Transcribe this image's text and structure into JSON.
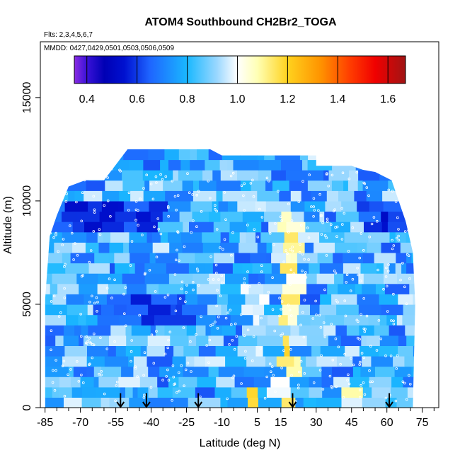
{
  "chart_data": {
    "type": "heatmap",
    "title": "ATOM4 Southbound CH2Br2_TOGA",
    "flights_label": "Flts: 2,3,4,5,6,7",
    "mmdd_label": "MMDD: 0427,0429,0501,0503,0506,0509",
    "xlabel": "Latitude (deg N)",
    "ylabel": "Altitude (m)",
    "xlim": [
      -87,
      82
    ],
    "ylim": [
      0,
      17700
    ],
    "x_tick_labels": [
      "-85",
      "-70",
      "-55",
      "-40",
      "-25",
      "-10",
      "5",
      "15",
      "30",
      "45",
      "60",
      "75"
    ],
    "x_tick_values": [
      -85,
      -70,
      -55,
      -40,
      -25,
      -10,
      5,
      15,
      30,
      45,
      60,
      75
    ],
    "x_minor_ticks": [
      -80,
      -75,
      -65,
      -60,
      -50,
      -45,
      -35,
      -30,
      -20,
      -15,
      -5,
      0,
      10,
      20,
      25,
      35,
      40,
      50,
      55,
      65,
      70,
      80
    ],
    "y_tick_labels": [
      "0",
      "5000",
      "10000",
      "15000"
    ],
    "y_tick_values": [
      0,
      5000,
      10000,
      15000
    ],
    "colorbar": {
      "min": 0.35,
      "max": 1.67,
      "tick_labels": [
        "0.4",
        "0.6",
        "0.8",
        "1.0",
        "1.2",
        "1.4",
        "1.6"
      ],
      "tick_values": [
        0.4,
        0.6,
        0.8,
        1.0,
        1.2,
        1.4,
        1.6
      ],
      "stops": [
        {
          "v": 0.35,
          "c": "#8a2be2"
        },
        {
          "v": 0.4,
          "c": "#3a12d8"
        },
        {
          "v": 0.47,
          "c": "#0000b4"
        },
        {
          "v": 0.55,
          "c": "#0011d0"
        },
        {
          "v": 0.65,
          "c": "#1e64ff"
        },
        {
          "v": 0.8,
          "c": "#1ab8ff"
        },
        {
          "v": 0.92,
          "c": "#9cd8ff"
        },
        {
          "v": 1.0,
          "c": "#ffffff"
        },
        {
          "v": 1.08,
          "c": "#ffffb4"
        },
        {
          "v": 1.2,
          "c": "#ffd21e"
        },
        {
          "v": 1.33,
          "c": "#ff9400"
        },
        {
          "v": 1.45,
          "c": "#ff3c00"
        },
        {
          "v": 1.55,
          "c": "#f00000"
        },
        {
          "v": 1.67,
          "c": "#a01414"
        }
      ]
    },
    "profile_arrows_lat": [
      -53,
      -42,
      -20,
      20,
      61
    ],
    "curtain": {
      "lat_min": -85,
      "lat_max": 72,
      "alt_max": 12500,
      "band_height_m": 500,
      "base_value": 0.8,
      "features": [
        {
          "lat": 18,
          "width": 4,
          "alt_from": 0,
          "alt_to": 10000,
          "value": 1.22,
          "note": "high CH2Br2 column near 15-20N"
        },
        {
          "lat": 3,
          "width": 3,
          "alt_from": 0,
          "alt_to": 1500,
          "value": 1.2
        },
        {
          "lat": 43,
          "width": 3,
          "alt_from": 0,
          "alt_to": 1200,
          "value": 1.18
        },
        {
          "lat": 5,
          "width": 6,
          "alt_from": 2500,
          "alt_to": 6000,
          "value": 1.02
        },
        {
          "lat": -60,
          "width": 25,
          "alt_from": 8500,
          "alt_to": 10000,
          "value": 0.5
        },
        {
          "lat": 60,
          "width": 12,
          "alt_from": 8500,
          "alt_to": 10000,
          "value": 0.5
        },
        {
          "lat": -40,
          "width": 20,
          "alt_from": 4000,
          "alt_to": 5500,
          "value": 0.55
        }
      ]
    },
    "marker_color": "#ffffff",
    "arrow_color": "#000000"
  }
}
